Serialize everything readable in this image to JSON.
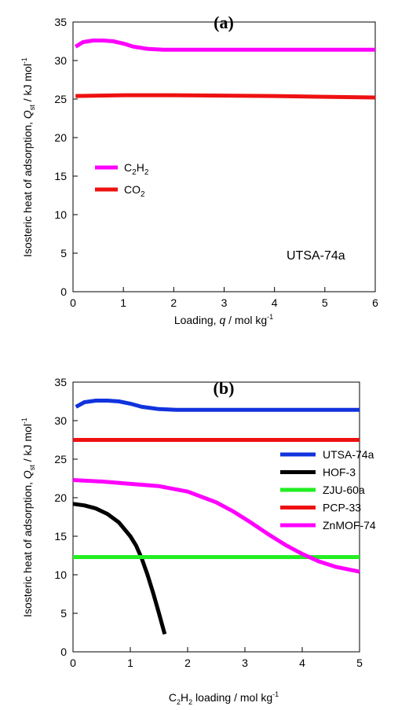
{
  "chart_data": [
    {
      "type": "line",
      "panel_label": "(a)",
      "xlabel": "Loading, q / mol kg-1",
      "ylabel": "Isosteric heat of adsorption, Qst / kJ mol-1",
      "xlim": [
        0,
        6
      ],
      "ylim": [
        0,
        35
      ],
      "xticks": [
        0,
        1,
        2,
        3,
        4,
        5,
        6
      ],
      "yticks": [
        0,
        5,
        10,
        15,
        20,
        25,
        30,
        35
      ],
      "annotation": "UTSA-74a",
      "legend_position": "left",
      "series": [
        {
          "name": "C2H2",
          "color": "#ff00ff",
          "x": [
            0.05,
            0.2,
            0.4,
            0.6,
            0.8,
            1.0,
            1.2,
            1.5,
            1.8,
            2.2,
            2.6,
            3.0,
            3.5,
            4.0,
            4.5,
            5.0,
            5.5,
            6.0
          ],
          "y": [
            31.8,
            32.4,
            32.6,
            32.6,
            32.5,
            32.2,
            31.8,
            31.5,
            31.4,
            31.4,
            31.4,
            31.4,
            31.4,
            31.4,
            31.4,
            31.4,
            31.4,
            31.4
          ]
        },
        {
          "name": "CO2",
          "color": "#ee1111",
          "x": [
            0.05,
            0.5,
            1.0,
            2.0,
            3.0,
            4.0,
            5.0,
            6.0
          ],
          "y": [
            25.4,
            25.45,
            25.5,
            25.5,
            25.45,
            25.4,
            25.3,
            25.2
          ]
        }
      ]
    },
    {
      "type": "line",
      "panel_label": "(b)",
      "xlabel": "C2H2 loading / mol kg-1",
      "ylabel": "Isosteric heat of adsorption, Qst / kJ mol-1",
      "xlim": [
        0,
        5
      ],
      "ylim": [
        0,
        35
      ],
      "xticks": [
        0,
        1,
        2,
        3,
        4,
        5
      ],
      "yticks": [
        0,
        5,
        10,
        15,
        20,
        25,
        30,
        35
      ],
      "legend_position": "right",
      "series": [
        {
          "name": "UTSA-74a",
          "color": "#1133dd",
          "x": [
            0.05,
            0.2,
            0.4,
            0.6,
            0.8,
            1.0,
            1.2,
            1.5,
            1.8,
            2.2,
            2.6,
            3.0,
            3.5,
            4.0,
            4.5,
            5.0
          ],
          "y": [
            31.8,
            32.4,
            32.6,
            32.6,
            32.5,
            32.2,
            31.8,
            31.5,
            31.4,
            31.4,
            31.4,
            31.4,
            31.4,
            31.4,
            31.4,
            31.4
          ]
        },
        {
          "name": "HOF-3",
          "color": "#000000",
          "x": [
            0.0,
            0.2,
            0.4,
            0.6,
            0.8,
            1.0,
            1.1,
            1.2,
            1.3,
            1.4,
            1.5,
            1.6
          ],
          "y": [
            19.2,
            19.0,
            18.6,
            17.9,
            16.8,
            15.0,
            13.8,
            12.1,
            10.0,
            7.6,
            5.0,
            2.3
          ]
        },
        {
          "name": "ZJU-60a",
          "color": "#22ee22",
          "x": [
            0.0,
            1.0,
            2.0,
            3.0,
            4.0,
            5.0
          ],
          "y": [
            12.3,
            12.3,
            12.3,
            12.3,
            12.3,
            12.3
          ]
        },
        {
          "name": "PCP-33",
          "color": "#ee1111",
          "x": [
            0.0,
            1.0,
            2.0,
            3.0,
            4.0,
            5.0
          ],
          "y": [
            27.5,
            27.5,
            27.5,
            27.5,
            27.5,
            27.5
          ]
        },
        {
          "name": "ZnMOF-74",
          "color": "#ff00ff",
          "x": [
            0.0,
            0.5,
            1.0,
            1.5,
            2.0,
            2.5,
            2.8,
            3.1,
            3.4,
            3.7,
            4.0,
            4.3,
            4.6,
            5.0
          ],
          "y": [
            22.3,
            22.1,
            21.8,
            21.5,
            20.8,
            19.4,
            18.2,
            16.8,
            15.3,
            13.9,
            12.7,
            11.7,
            11.0,
            10.4
          ]
        }
      ]
    }
  ]
}
